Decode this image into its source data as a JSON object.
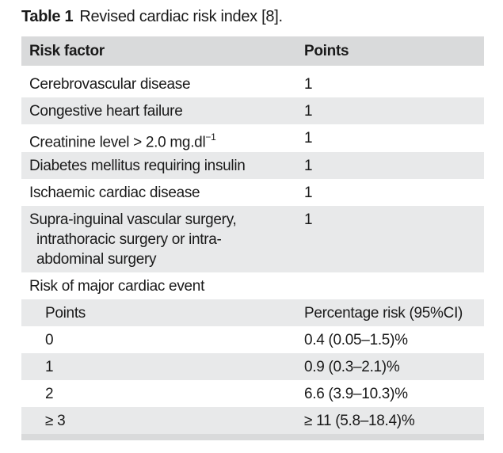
{
  "caption": {
    "label": "Table 1",
    "title": "Revised cardiac risk index [8]."
  },
  "header": {
    "col1": "Risk factor",
    "col2": "Points"
  },
  "risk_factors": [
    {
      "factor": "Cerebrovascular disease",
      "points": "1"
    },
    {
      "factor": "Congestive heart failure",
      "points": "1"
    },
    {
      "factor": "Creatinine level > 2.0 mg.dl",
      "sup": "−1",
      "points": "1"
    },
    {
      "factor": "Diabetes mellitus requiring insulin",
      "points": "1"
    },
    {
      "factor": "Ischaemic cardiac disease",
      "points": "1"
    },
    {
      "factor_lines": [
        "Supra-inguinal vascular surgery,",
        "intrathoracic surgery or intra-",
        "abdominal surgery"
      ],
      "points": "1"
    }
  ],
  "section": {
    "title": "Risk of major cardiac event",
    "col1": "Points",
    "col2": "Percentage risk (95%CI)"
  },
  "risk_rows": [
    {
      "points": "0",
      "risk": "0.4 (0.05–1.5)%"
    },
    {
      "points": "1",
      "risk": "0.9 (0.3–2.1)%"
    },
    {
      "points": "2",
      "risk": "6.6 (3.9–10.3)%"
    },
    {
      "points": "≥ 3",
      "risk": "≥ 11 (5.8–18.4)%"
    }
  ]
}
